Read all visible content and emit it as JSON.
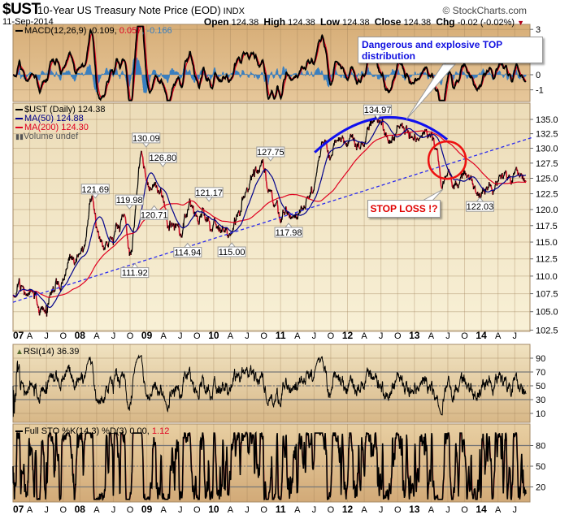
{
  "header": {
    "symbol": "$UST",
    "description": "10-Year US Treasury Note Price (EOD)",
    "exchange": "INDX",
    "date": "11-Sep-2014",
    "brand": "© StockCharts.com",
    "open_label": "Open",
    "open": "124.38",
    "high_label": "High",
    "high": "124.38",
    "low_label": "Low",
    "low": "124.38",
    "close_label": "Close",
    "close": "124.38",
    "chg_label": "Chg",
    "chg": "-0.02 (-0.02%)",
    "chg_arrow": "▼"
  },
  "legends": {
    "macd": {
      "label": "MACD(12,26,9) -0.109,",
      "signal": " 0.057",
      "hist": ", -0.166"
    },
    "price": {
      "label": "$UST (Daily) 124.38",
      "ma50": "MA(50) 124.88",
      "ma200": "MA(200) 124.30",
      "volume": "Volume undef"
    },
    "rsi": {
      "label": "RSI(14) 36.39"
    },
    "sto": {
      "label": "Full STO %K(14,3) %D(3) 0.00,",
      "d": " 1.12"
    }
  },
  "annotations": {
    "top_callout": "Dangerous and explosive TOP distribution",
    "stop_loss": "STOP LOSS !?"
  },
  "colors": {
    "price_up": "#000000",
    "price_down": "#d0102a",
    "ma50": "#00008b",
    "ma200": "#e00020",
    "macd_hist": "#3a7fbf",
    "trendline": "#2a2aee",
    "arc": "#1010ee",
    "circle": "#ee1010"
  },
  "chart_data": {
    "type": "line",
    "title": "$UST 10-Year US Treasury Note Price (EOD)",
    "price_scale": "log",
    "price_ylim": [
      102.5,
      135.5
    ],
    "price_ticks": [
      "135.0",
      "132.5",
      "130.0",
      "127.5",
      "125.0",
      "122.5",
      "120.0",
      "117.5",
      "115.0",
      "112.5",
      "110.0",
      "107.5",
      "105.0",
      "102.5"
    ],
    "macd_ticks": [
      "3",
      "0",
      "-1"
    ],
    "rsi_ticks": [
      "90",
      "70",
      "50",
      "30",
      "10"
    ],
    "sto_ticks": [
      "80",
      "50",
      "20"
    ],
    "x_tick_labels": [
      "07",
      "A",
      "J",
      "O",
      "08",
      "A",
      "J",
      "O",
      "09",
      "A",
      "J",
      "O",
      "10",
      "A",
      "J",
      "O",
      "11",
      "A",
      "J",
      "O",
      "12",
      "A",
      "J",
      "O",
      "13",
      "A",
      "J",
      "O",
      "14",
      "A",
      "J"
    ],
    "x_start": "2007-01",
    "price_monthly": {
      "frequency": "monthly",
      "values": [
        107.8,
        108.2,
        107.5,
        107.6,
        106.5,
        105,
        105.5,
        107.5,
        108.5,
        109,
        111.5,
        112,
        114,
        115.5,
        120.5,
        118,
        116,
        115.5,
        117,
        117.5,
        119,
        113.5,
        120,
        129.5,
        125,
        124,
        123.5,
        121,
        117.5,
        117,
        117,
        119,
        120.5,
        118.5,
        119.5,
        118,
        118.5,
        117.5,
        116.5,
        115.5,
        119,
        121,
        123,
        125.5,
        126,
        127,
        123.5,
        120.5,
        119.5,
        119.5,
        118.5,
        120,
        121.5,
        122,
        123.5,
        129,
        130.5,
        129.5,
        130.5,
        131,
        131,
        130.5,
        129,
        131,
        133,
        134.5,
        133.5,
        133,
        132.5,
        133,
        133,
        132,
        131.5,
        131.5,
        132.5,
        132.5,
        129,
        125,
        125.5,
        123.5,
        125,
        126,
        124.5,
        122.5,
        123.5,
        124.5,
        124,
        124.5,
        125,
        124.5,
        125,
        125.5,
        124.38
      ]
    },
    "price_labels": [
      {
        "text": "121.69",
        "value": 121.69,
        "year": 1.23,
        "pos": "above"
      },
      {
        "text": "119.98",
        "value": 119.98,
        "year": 1.74,
        "pos": "above"
      },
      {
        "text": "111.92",
        "value": 111.92,
        "year": 1.82,
        "pos": "below"
      },
      {
        "text": "130.09",
        "value": 130.09,
        "year": 1.99,
        "pos": "above"
      },
      {
        "text": "120.71",
        "value": 120.71,
        "year": 2.11,
        "pos": "below"
      },
      {
        "text": "126.80",
        "value": 126.8,
        "year": 2.24,
        "pos": "above"
      },
      {
        "text": "114.94",
        "value": 114.94,
        "year": 2.61,
        "pos": "below"
      },
      {
        "text": "121.17",
        "value": 121.17,
        "year": 2.93,
        "pos": "above"
      },
      {
        "text": "115.00",
        "value": 115.0,
        "year": 3.27,
        "pos": "below"
      },
      {
        "text": "127.75",
        "value": 127.75,
        "year": 3.85,
        "pos": "above"
      },
      {
        "text": "117.98",
        "value": 117.98,
        "year": 4.12,
        "pos": "below"
      },
      {
        "text": "134.97",
        "value": 134.97,
        "year": 5.45,
        "pos": "above"
      },
      {
        "text": "122.03",
        "value": 122.03,
        "year": 6.98,
        "pos": "below"
      }
    ],
    "trendline": {
      "from": [
        0.0,
        106.3
      ],
      "to": [
        7.75,
        131.8
      ]
    },
    "top_arc": {
      "from": [
        4.51,
        129.3
      ],
      "peak": [
        5.52,
        135.3
      ],
      "to": [
        6.49,
        131.5
      ]
    },
    "stop_circle_center": [
      6.49,
      128.0
    ],
    "last_values": {
      "close": 124.38,
      "ma50": 124.88,
      "ma200": 124.3,
      "rsi": 36.39,
      "macd": -0.109,
      "signal": 0.057,
      "hist": -0.166,
      "sto_k": 0.0,
      "sto_d": 1.12
    }
  }
}
